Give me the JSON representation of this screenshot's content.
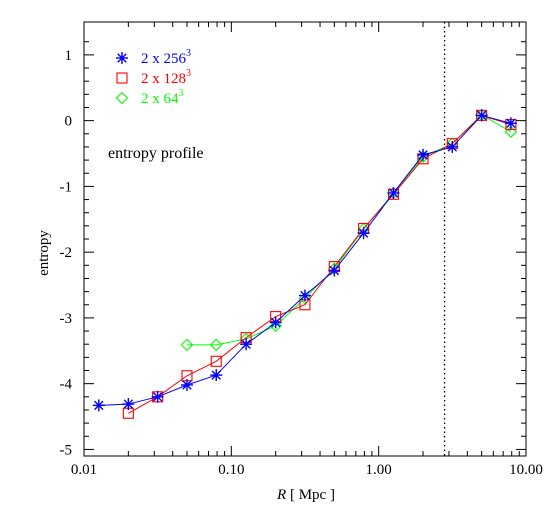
{
  "chart_data": {
    "type": "line",
    "xlabel_italic": "R",
    "xlabel_rest": " [ Mpc ]",
    "ylabel": "entropy",
    "xscale": "log",
    "xlim": [
      0.01,
      10.0
    ],
    "ylim": [
      -5.1,
      1.5
    ],
    "x_ticks": [
      0.01,
      0.1,
      1.0,
      10.0
    ],
    "x_tick_labels": [
      "0.01",
      "0.10",
      "1.00",
      "10.00"
    ],
    "y_ticks": [
      -5,
      -4,
      -3,
      -2,
      -1,
      0,
      1
    ],
    "y_tick_labels": [
      "-5",
      "-4",
      "-3",
      "-2",
      "-1",
      "0",
      "1"
    ],
    "vline_x": 2.8,
    "annotation": "entropy profile",
    "series": [
      {
        "name": "2 x 256",
        "sup": "3",
        "color": "#0000ff",
        "marker": "asterisk",
        "x": [
          0.0126,
          0.02,
          0.0316,
          0.05,
          0.079,
          0.126,
          0.2,
          0.316,
          0.5,
          0.79,
          1.26,
          2.0,
          3.16,
          5.0,
          7.9
        ],
        "y": [
          -4.33,
          -4.31,
          -4.2,
          -4.02,
          -3.87,
          -3.4,
          -3.07,
          -2.66,
          -2.28,
          -1.71,
          -1.1,
          -0.52,
          -0.4,
          0.08,
          -0.04
        ]
      },
      {
        "name": "2 x 128",
        "sup": "3",
        "color": "#ff0000",
        "marker": "square",
        "x": [
          0.02,
          0.0316,
          0.05,
          0.079,
          0.126,
          0.2,
          0.316,
          0.5,
          0.79,
          1.26,
          2.0,
          3.16,
          5.0,
          7.9
        ],
        "y": [
          -4.45,
          -4.2,
          -3.88,
          -3.66,
          -3.3,
          -2.98,
          -2.8,
          -2.22,
          -1.64,
          -1.12,
          -0.58,
          -0.35,
          0.08,
          -0.06
        ]
      },
      {
        "name": "2 x  64",
        "sup": "3",
        "color": "#00ff00",
        "marker": "diamond",
        "x": [
          0.05,
          0.079,
          0.126,
          0.2,
          0.316,
          0.5,
          0.79,
          1.26,
          2.0,
          3.16,
          5.0,
          7.9
        ],
        "y": [
          -3.41,
          -3.41,
          -3.32,
          -3.12,
          -2.7,
          -2.25,
          -1.65,
          -1.1,
          -0.55,
          -0.35,
          0.09,
          -0.17
        ]
      }
    ]
  }
}
